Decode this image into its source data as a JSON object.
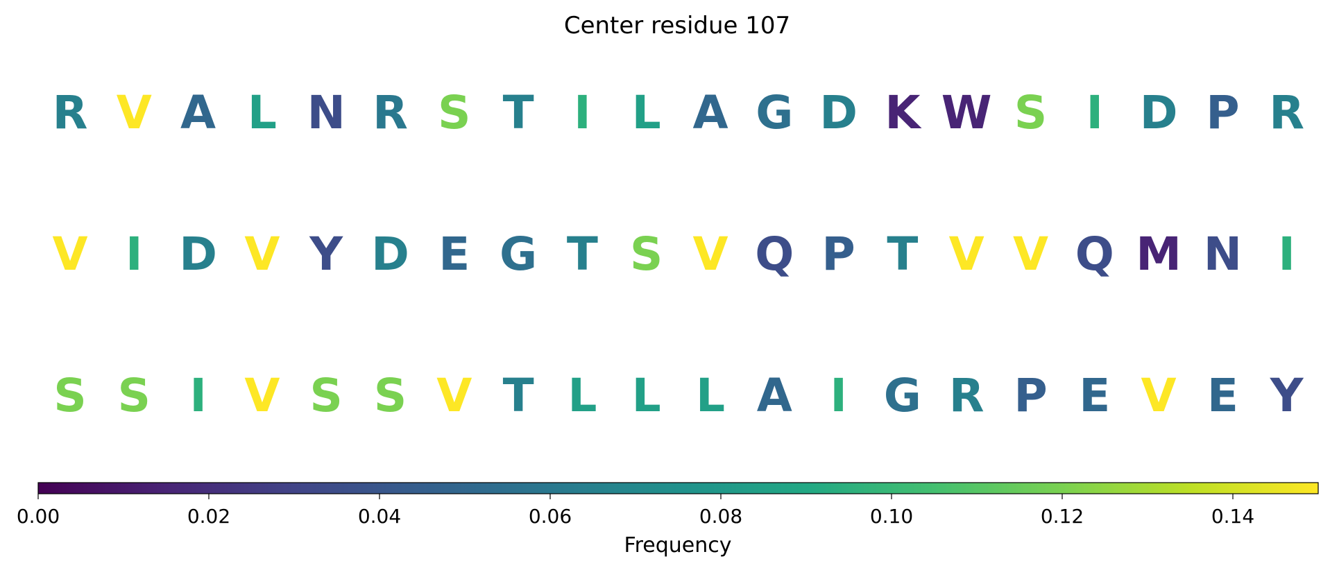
{
  "chart_data": {
    "type": "heatmap",
    "title": "Center residue 107",
    "rows": [
      {
        "letters": [
          "R",
          "V",
          "A",
          "L",
          "N",
          "R",
          "S",
          "T",
          "I",
          "L",
          "A",
          "G",
          "D",
          "K",
          "W",
          "S",
          "I",
          "D",
          "P",
          "R"
        ],
        "frequencies": [
          0.065,
          0.15,
          0.05,
          0.085,
          0.035,
          0.06,
          0.12,
          0.065,
          0.095,
          0.085,
          0.05,
          0.055,
          0.065,
          0.015,
          0.015,
          0.12,
          0.095,
          0.065,
          0.045,
          0.065
        ]
      },
      {
        "letters": [
          "V",
          "I",
          "D",
          "V",
          "Y",
          "D",
          "E",
          "G",
          "T",
          "S",
          "V",
          "Q",
          "P",
          "T",
          "V",
          "V",
          "Q",
          "M",
          "N",
          "I"
        ],
        "frequencies": [
          0.15,
          0.095,
          0.065,
          0.15,
          0.035,
          0.065,
          0.05,
          0.055,
          0.065,
          0.12,
          0.15,
          0.035,
          0.045,
          0.065,
          0.15,
          0.15,
          0.035,
          0.015,
          0.035,
          0.095
        ]
      },
      {
        "letters": [
          "S",
          "S",
          "I",
          "V",
          "S",
          "S",
          "V",
          "T",
          "L",
          "L",
          "L",
          "A",
          "I",
          "G",
          "R",
          "P",
          "E",
          "V",
          "E",
          "Y"
        ],
        "frequencies": [
          0.12,
          0.12,
          0.095,
          0.15,
          0.12,
          0.12,
          0.15,
          0.065,
          0.085,
          0.085,
          0.085,
          0.05,
          0.095,
          0.055,
          0.065,
          0.045,
          0.05,
          0.15,
          0.05,
          0.035
        ]
      }
    ],
    "colorbar": {
      "label": "Frequency",
      "range": [
        0.0,
        0.15
      ],
      "ticks": [
        0.0,
        0.02,
        0.04,
        0.06,
        0.08,
        0.1,
        0.12,
        0.14
      ],
      "tick_labels": [
        "0.00",
        "0.02",
        "0.04",
        "0.06",
        "0.08",
        "0.10",
        "0.12",
        "0.14"
      ],
      "colormap": "viridis",
      "orientation": "horizontal",
      "location": "bottom"
    }
  }
}
